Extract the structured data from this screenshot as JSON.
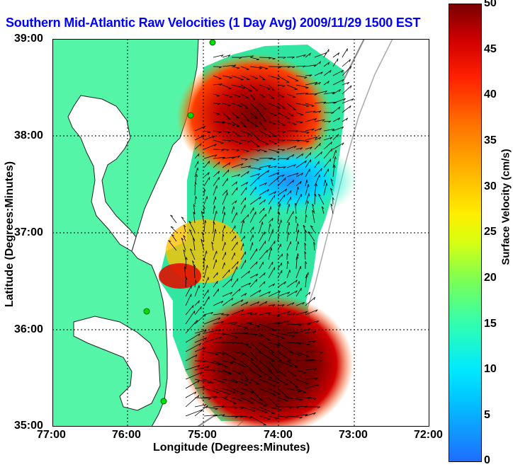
{
  "title": "Southern Mid-Atlantic Raw Velocities (1 Day Avg) 2009/11/29 1500 EST",
  "axes": {
    "xlabel": "Longitude (Degrees:Minutes)",
    "ylabel": "Latitude (Degrees:Minutes)",
    "xticks": [
      "77:00",
      "76:00",
      "75:00",
      "74:00",
      "73:00",
      "72:00"
    ],
    "yticks": [
      "39:00",
      "38:00",
      "37:00",
      "36:00",
      "35:00"
    ],
    "xlim": [
      -77,
      -72
    ],
    "ylim": [
      35,
      39
    ]
  },
  "colorbar": {
    "label": "Surface Velocity (cm/s)",
    "ticks": [
      "50",
      "45",
      "40",
      "35",
      "30",
      "25",
      "20",
      "15",
      "10",
      "5",
      "0"
    ],
    "range": [
      0,
      50
    ]
  },
  "colors": {
    "title": "#0000ff",
    "land": "#55f5a8",
    "water": "#ffffff",
    "grid": "#000000"
  }
}
